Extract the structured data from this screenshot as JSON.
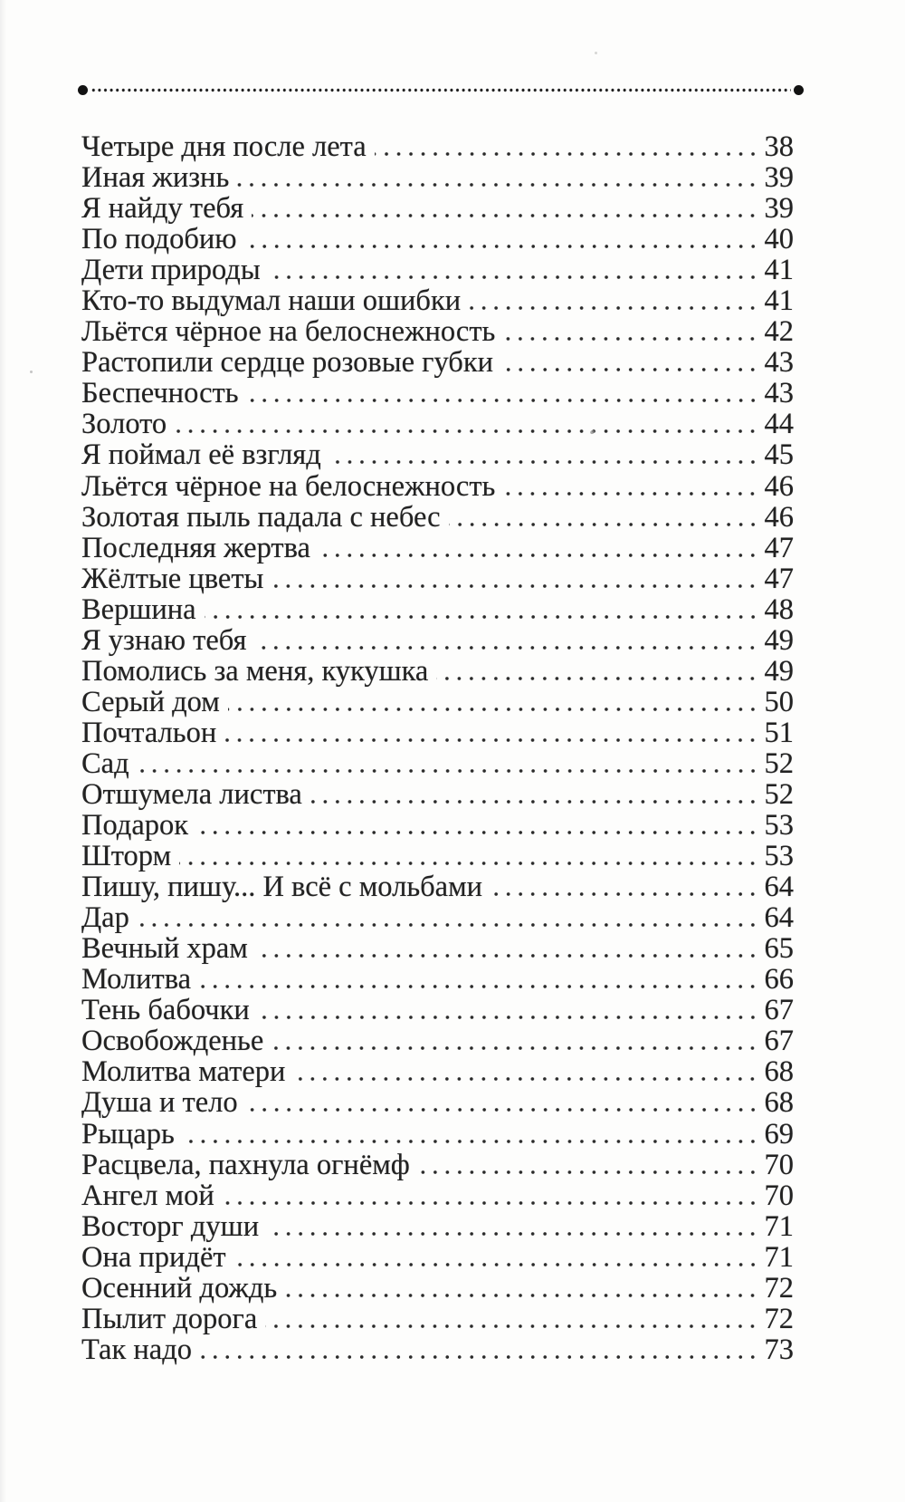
{
  "page": {
    "kind": "scanned book page — table of contents",
    "language": "Russian",
    "background_color": "#fdfdfc",
    "text_color": "#222222"
  },
  "toc": {
    "entries": [
      {
        "title": "Четыре дня после лета",
        "page": "38"
      },
      {
        "title": "Иная жизнь",
        "page": "39"
      },
      {
        "title": "Я найду тебя",
        "page": "39"
      },
      {
        "title": "По подобию",
        "page": "40"
      },
      {
        "title": "Дети природы",
        "page": "41"
      },
      {
        "title": "Кто-то выдумал наши ошибки",
        "page": "41"
      },
      {
        "title": "Льётся чёрное на белоснежность",
        "page": "42"
      },
      {
        "title": "Растопили сердце розовые губки",
        "page": "43"
      },
      {
        "title": "Беспечность",
        "page": "43"
      },
      {
        "title": "Золото",
        "page": "44"
      },
      {
        "title": "Я поймал её взгляд",
        "page": "45"
      },
      {
        "title": "Льётся чёрное на белоснежность",
        "page": "46"
      },
      {
        "title": "Золотая пыль падала с небес",
        "page": "46"
      },
      {
        "title": "Последняя жертва",
        "page": "47"
      },
      {
        "title": "Жёлтые цветы",
        "page": "47"
      },
      {
        "title": "Вершина",
        "page": "48"
      },
      {
        "title": "Я узнаю тебя",
        "page": "49"
      },
      {
        "title": "Помолись за меня, кукушка",
        "page": "49"
      },
      {
        "title": "Серый дом",
        "page": "50"
      },
      {
        "title": "Почтальон",
        "page": "51"
      },
      {
        "title": "Сад",
        "page": "52"
      },
      {
        "title": "Отшумела листва",
        "page": "52"
      },
      {
        "title": "Подарок",
        "page": "53"
      },
      {
        "title": "Шторм",
        "page": "53"
      },
      {
        "title": "Пишу, пишу... И всё с мольбами",
        "page": "64"
      },
      {
        "title": "Дар",
        "page": "64"
      },
      {
        "title": "Вечный храм",
        "page": "65"
      },
      {
        "title": "Молитва",
        "page": "66"
      },
      {
        "title": "Тень бабочки",
        "page": "67"
      },
      {
        "title": "Освобожденье",
        "page": "67"
      },
      {
        "title": "Молитва матери",
        "page": "68"
      },
      {
        "title": "Душа и тело",
        "page": "68"
      },
      {
        "title": "Рыцарь",
        "page": "69"
      },
      {
        "title": "Расцвела, пахнула огнёмф",
        "page": "70"
      },
      {
        "title": "Ангел мой",
        "page": "70"
      },
      {
        "title": "Восторг души",
        "page": "71"
      },
      {
        "title": "Она придёт",
        "page": "71"
      },
      {
        "title": "Осенний дождь",
        "page": "72"
      },
      {
        "title": "Пылит дорога",
        "page": "72"
      },
      {
        "title": "Так надо",
        "page": "73"
      }
    ]
  }
}
